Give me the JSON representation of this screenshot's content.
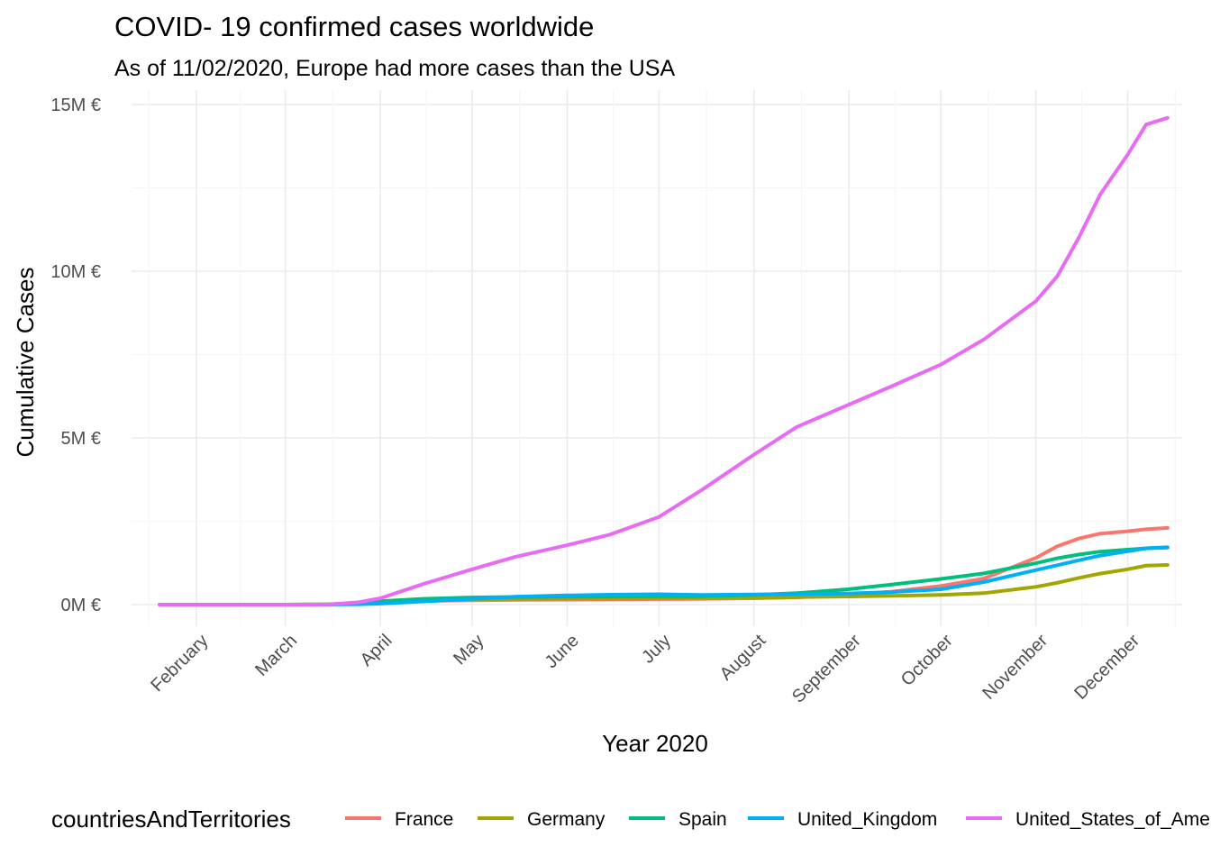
{
  "chart_data": {
    "type": "line",
    "title": "COVID- 19 confirmed cases worldwide",
    "subtitle": "As of 11/02/2020, Europe had more cases than the USA",
    "xlabel": "Year 2020",
    "ylabel": "Cumulative Cases",
    "x_tick_labels": [
      "February",
      "March",
      "April",
      "May",
      "June",
      "July",
      "August",
      "September",
      "October",
      "November",
      "December"
    ],
    "y_ticks": [
      0,
      5000000,
      10000000,
      15000000
    ],
    "y_tick_labels": [
      "0M €",
      "5M €",
      "10M €",
      "15M €"
    ],
    "ylim": [
      0,
      15000000
    ],
    "grid": true,
    "legend_title": "countriesAndTerritories",
    "legend_position": "bottom",
    "x": [
      "2020-01-20",
      "2020-03-01",
      "2020-03-15",
      "2020-03-25",
      "2020-04-01",
      "2020-04-15",
      "2020-05-01",
      "2020-05-15",
      "2020-06-01",
      "2020-06-15",
      "2020-07-01",
      "2020-07-15",
      "2020-08-01",
      "2020-08-15",
      "2020-09-01",
      "2020-09-15",
      "2020-10-01",
      "2020-10-15",
      "2020-11-01",
      "2020-11-08",
      "2020-11-15",
      "2020-11-22",
      "2020-12-01",
      "2020-12-07",
      "2020-12-14"
    ],
    "series": [
      {
        "name": "France",
        "color": "#F8766D",
        "values": [
          0,
          100,
          4500,
          25000,
          52000,
          107000,
          130000,
          140000,
          150000,
          158000,
          166000,
          174000,
          188000,
          215000,
          290000,
          390000,
          560000,
          780000,
          1400000,
          1750000,
          1980000,
          2130000,
          2200000,
          2260000,
          2300000
        ]
      },
      {
        "name": "Germany",
        "color": "#A3A500",
        "values": [
          0,
          130,
          5800,
          37000,
          72000,
          130000,
          162000,
          172000,
          182000,
          187000,
          194000,
          199000,
          209000,
          224000,
          244000,
          263000,
          292000,
          344000,
          532000,
          655000,
          800000,
          930000,
          1060000,
          1170000,
          1190000
        ]
      },
      {
        "name": "Spain",
        "color": "#00BF7D",
        "values": [
          0,
          80,
          7800,
          50000,
          104000,
          172000,
          213000,
          230000,
          240000,
          244000,
          250000,
          258000,
          288000,
          343000,
          463000,
          603000,
          770000,
          936000,
          1240000,
          1390000,
          1500000,
          1590000,
          1650000,
          1690000,
          1710000
        ]
      },
      {
        "name": "United_Kingdom",
        "color": "#00B0F6",
        "values": [
          0,
          30,
          1100,
          9500,
          30000,
          94000,
          172000,
          236000,
          276000,
          296000,
          312000,
          291000,
          303000,
          316000,
          335000,
          375000,
          460000,
          676000,
          1035000,
          1180000,
          1330000,
          1470000,
          1600000,
          1690000,
          1720000
        ]
      },
      {
        "name": "United_States_of_America",
        "color": "#E76BF3",
        "values": [
          0,
          80,
          3500,
          69000,
          190000,
          615000,
          1060000,
          1430000,
          1780000,
          2100000,
          2630000,
          3440000,
          4500000,
          5330000,
          6000000,
          6550000,
          7200000,
          7950000,
          9100000,
          9850000,
          11000000,
          12300000,
          13500000,
          14400000,
          14600000
        ]
      }
    ]
  }
}
